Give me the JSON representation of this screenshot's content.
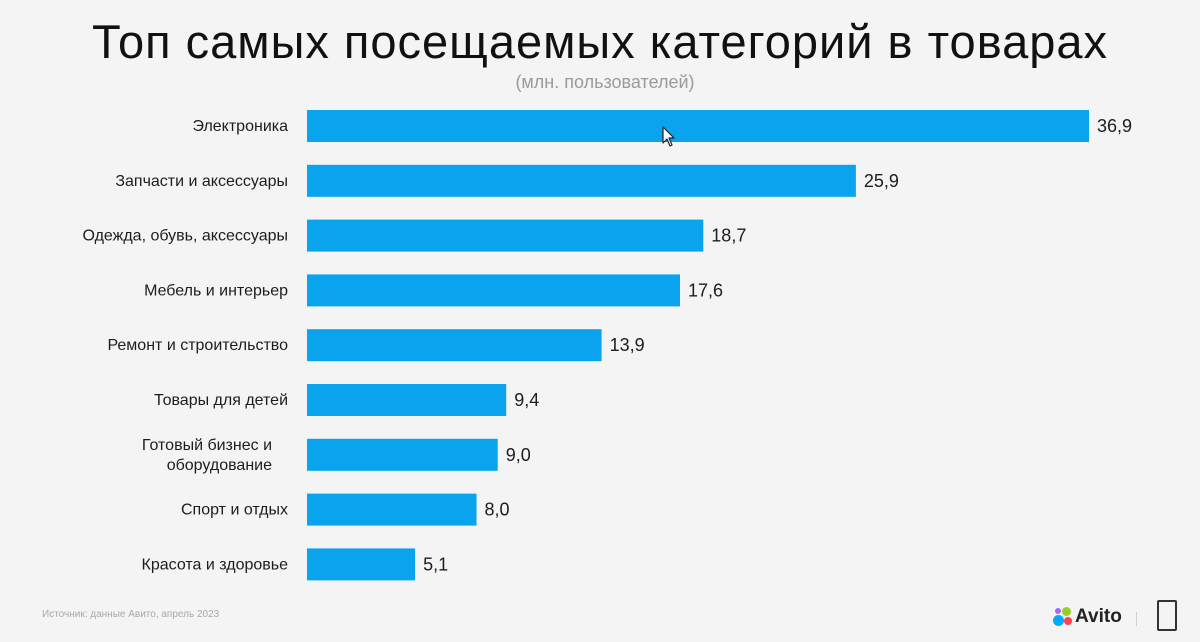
{
  "slide": {
    "title": "Топ самых посещаемых категорий в товарах",
    "subtitle": "(млн. пользователей)",
    "source": "Источник: данные Авито, апрель 2023",
    "logo_text": "Avito",
    "colors": {
      "bar": "#0aa3ee",
      "background": "#f4f4f4"
    }
  },
  "chart_data": {
    "type": "bar",
    "orientation": "horizontal",
    "title": "Топ самых посещаемых категорий в товарах",
    "subtitle": "(млн. пользователей)",
    "categories": [
      "Электроника",
      "Запчасти и аксессуары",
      "Одежда, обувь, аксессуары",
      "Мебель и интерьер",
      "Ремонт и строительство",
      "Товары для детей",
      "Готовый бизнес и оборудование",
      "Спорт и отдых",
      "Красота и здоровье"
    ],
    "category_lines": [
      [
        "Электроника"
      ],
      [
        "Запчасти и аксессуары"
      ],
      [
        "Одежда, обувь, аксессуары"
      ],
      [
        "Мебель и интерьер"
      ],
      [
        "Ремонт и строительство"
      ],
      [
        "Товары для детей"
      ],
      [
        "Готовый бизнес и",
        "оборудование"
      ],
      [
        "Спорт и отдых"
      ],
      [
        "Красота и здоровье"
      ]
    ],
    "values": [
      36.9,
      25.9,
      18.7,
      17.6,
      13.9,
      9.4,
      9.0,
      8.0,
      5.1
    ],
    "value_labels": [
      "36,9",
      "25,9",
      "18,7",
      "17,6",
      "13,9",
      "9,4",
      "9,0",
      "8,0",
      "5,1"
    ],
    "xlim": [
      0,
      36.9
    ],
    "grid": false,
    "legend": "none"
  }
}
